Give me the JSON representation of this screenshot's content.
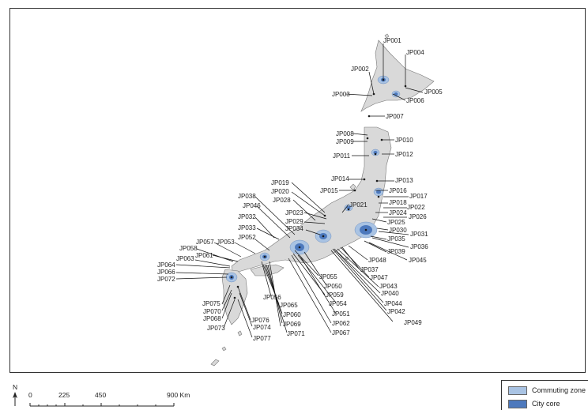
{
  "legend": {
    "commuting_zone": {
      "label": "Commuting zone",
      "color": "#a9c3e3"
    },
    "city_core": {
      "label": "City core",
      "color": "#4d79bd"
    }
  },
  "scale_bar": {
    "ticks": [
      "0",
      "225",
      "450",
      "900 Km"
    ]
  },
  "north_arrow": "N",
  "land_color": "#d9d9d9",
  "cities": [
    "JP001",
    "JP002",
    "JP003",
    "JP004",
    "JP005",
    "JP006",
    "JP007",
    "JP008",
    "JP009",
    "JP010",
    "JP011",
    "JP012",
    "JP013",
    "JP014",
    "JP015",
    "JP016",
    "JP017",
    "JP018",
    "JP019",
    "JP020",
    "JP021",
    "JP022",
    "JP023",
    "JP024",
    "JP025",
    "JP026",
    "JP028",
    "JP029",
    "JP030",
    "JP031",
    "JP032",
    "JP033",
    "JP034",
    "JP035",
    "JP036",
    "JP037",
    "JP038",
    "JP039",
    "JP040",
    "JP042",
    "JP043",
    "JP044",
    "JP045",
    "JP046",
    "JP047",
    "JP048",
    "JP049",
    "JP050",
    "JP051",
    "JP052",
    "JP053",
    "JP054",
    "JP055",
    "JP056",
    "JP057",
    "JP058",
    "JP059",
    "JP060",
    "JP061",
    "JP062",
    "JP063",
    "JP064",
    "JP065",
    "JP066",
    "JP067",
    "JP068",
    "JP069",
    "JP070",
    "JP071",
    "JP072",
    "JP073",
    "JP074",
    "JP075",
    "JP076",
    "JP077"
  ]
}
